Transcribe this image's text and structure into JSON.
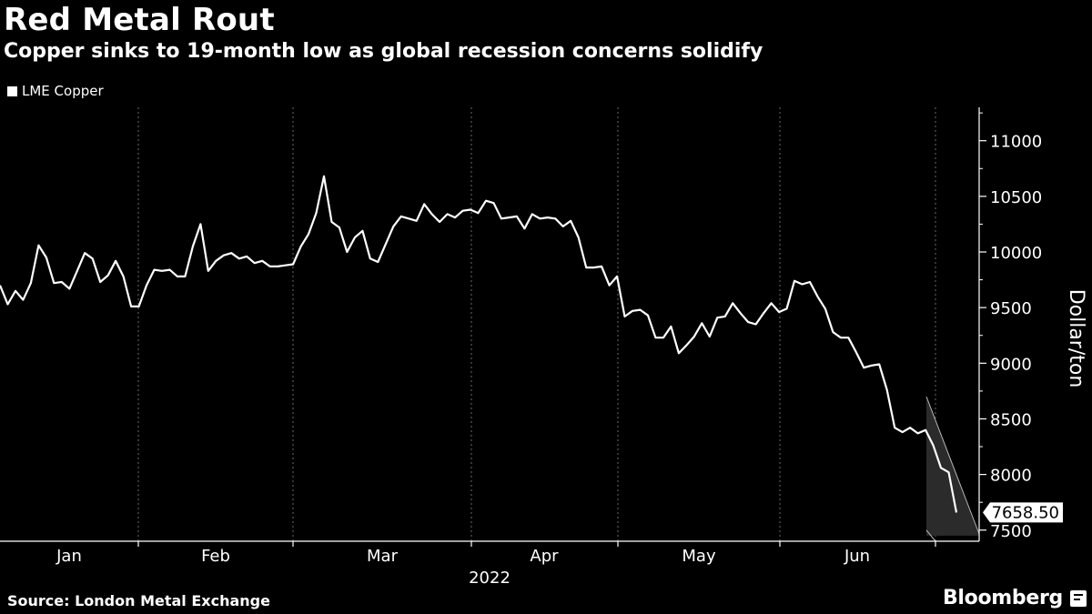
{
  "title": "Red Metal Rout",
  "subtitle": "Copper sinks to 19-month low as global recession concerns solidify",
  "legend_label": "LME Copper",
  "source": "Source: London Metal Exchange",
  "brand": "Bloomberg",
  "chart_data": {
    "type": "line",
    "title": "Red Metal Rout",
    "subtitle": "Copper sinks to 19-month low as global recession concerns solidify",
    "xlabel": "2022",
    "ylabel": "Dollar/ton",
    "ylim": [
      7400,
      11300
    ],
    "y_ticks": [
      7500,
      8000,
      8500,
      9000,
      9500,
      10000,
      10500,
      11000
    ],
    "x_month_labels": [
      "Jan",
      "Feb",
      "Mar",
      "Apr",
      "May",
      "Jun"
    ],
    "x_year_label": "2022",
    "grid": "vertical dotted at month boundaries",
    "legend_position": "top-left",
    "last_value_label": "7658.50",
    "series": [
      {
        "name": "LME Copper",
        "color": "#ffffff",
        "values": [
          9700,
          9530,
          9650,
          9570,
          9720,
          10060,
          9950,
          9720,
          9730,
          9670,
          9830,
          9990,
          9940,
          9730,
          9790,
          9920,
          9780,
          9510,
          9510,
          9700,
          9840,
          9830,
          9840,
          9780,
          9780,
          10050,
          10250,
          9830,
          9920,
          9970,
          9990,
          9940,
          9960,
          9900,
          9920,
          9870,
          9870,
          9880,
          9890,
          10050,
          10160,
          10350,
          10680,
          10270,
          10220,
          10000,
          10130,
          10190,
          9940,
          9910,
          10070,
          10230,
          10320,
          10300,
          10280,
          10430,
          10340,
          10270,
          10340,
          10310,
          10370,
          10380,
          10350,
          10460,
          10440,
          10300,
          10310,
          10320,
          10210,
          10340,
          10300,
          10310,
          10300,
          10230,
          10280,
          10130,
          9860,
          9860,
          9870,
          9700,
          9780,
          9420,
          9470,
          9480,
          9430,
          9230,
          9230,
          9330,
          9090,
          9160,
          9240,
          9360,
          9240,
          9410,
          9420,
          9540,
          9450,
          9370,
          9350,
          9450,
          9540,
          9460,
          9490,
          9740,
          9710,
          9730,
          9600,
          9490,
          9280,
          9230,
          9230,
          9100,
          8960,
          8980,
          8990,
          8760,
          8420,
          8380,
          8420,
          8370,
          8400,
          8260,
          8060,
          8020,
          7658.5
        ]
      }
    ]
  }
}
